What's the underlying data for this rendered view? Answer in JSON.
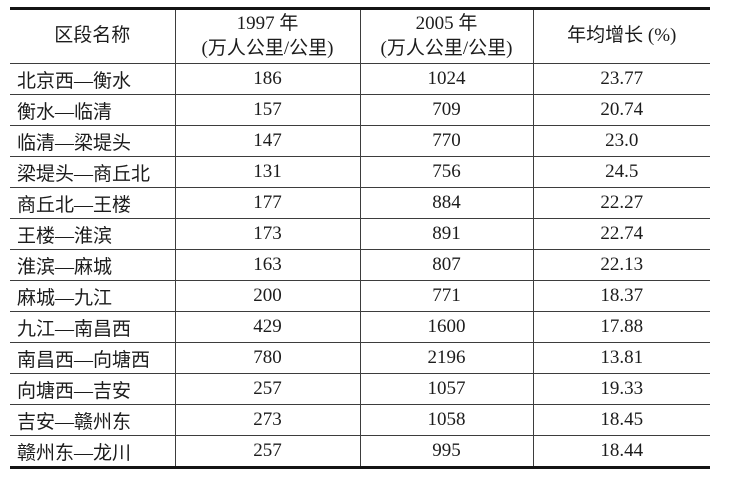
{
  "table": {
    "header": {
      "col1": "区段名称",
      "col2_line1": "1997 年",
      "col2_line2": "(万人公里/公里)",
      "col3_line1": "2005 年",
      "col3_line2": "(万人公里/公里)",
      "col4": "年均增长 (%)"
    },
    "rows": [
      {
        "name": "北京西—衡水",
        "y1997": "186",
        "y2005": "1024",
        "growth": "23.77"
      },
      {
        "name": "衡水—临清",
        "y1997": "157",
        "y2005": "709",
        "growth": "20.74"
      },
      {
        "name": "临清—梁堤头",
        "y1997": "147",
        "y2005": "770",
        "growth": "23.0"
      },
      {
        "name": "梁堤头—商丘北",
        "y1997": "131",
        "y2005": "756",
        "growth": "24.5"
      },
      {
        "name": "商丘北—王楼",
        "y1997": "177",
        "y2005": "884",
        "growth": "22.27"
      },
      {
        "name": "王楼—淮滨",
        "y1997": "173",
        "y2005": "891",
        "growth": "22.74"
      },
      {
        "name": "淮滨—麻城",
        "y1997": "163",
        "y2005": "807",
        "growth": "22.13"
      },
      {
        "name": "麻城—九江",
        "y1997": "200",
        "y2005": "771",
        "growth": "18.37"
      },
      {
        "name": "九江—南昌西",
        "y1997": "429",
        "y2005": "1600",
        "growth": "17.88"
      },
      {
        "name": "南昌西—向塘西",
        "y1997": "780",
        "y2005": "2196",
        "growth": "13.81"
      },
      {
        "name": "向塘西—吉安",
        "y1997": "257",
        "y2005": "1057",
        "growth": "19.33"
      },
      {
        "name": "吉安—赣州东",
        "y1997": "273",
        "y2005": "1058",
        "growth": "18.45"
      },
      {
        "name": "赣州东—龙川",
        "y1997": "257",
        "y2005": "995",
        "growth": "18.44"
      }
    ]
  },
  "colors": {
    "thick_rule": "#141414",
    "thin_rule": "#3d3d3d",
    "text": "#1c1c1c",
    "background": "#ffffff"
  }
}
